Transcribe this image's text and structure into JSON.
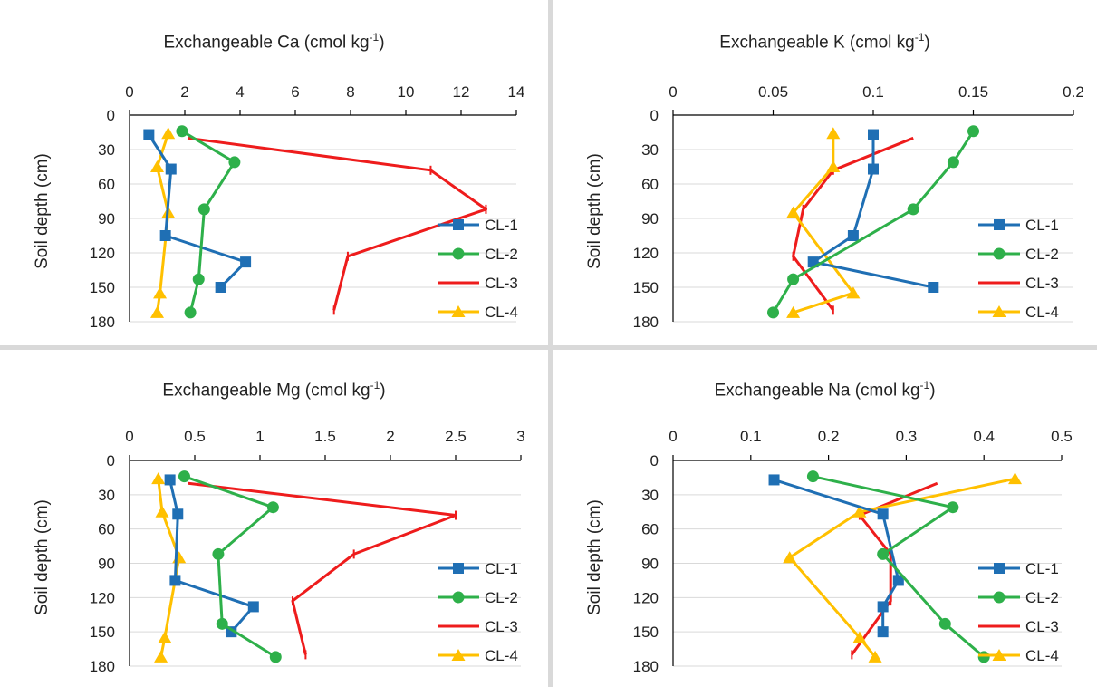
{
  "y_axis": {
    "label": "Soil depth (cm)",
    "ticks": [
      0,
      30,
      60,
      90,
      120,
      150,
      180
    ],
    "ylim": [
      0,
      180
    ],
    "reversed": true
  },
  "series_names": [
    "CL-1",
    "CL-2",
    "CL-3",
    "CL-4"
  ],
  "colors": {
    "CL-1": "#1f6fb4",
    "CL-2": "#2eb04a",
    "CL-3": "#ee1c1c",
    "CL-4": "#ffc000"
  },
  "markers": {
    "CL-1": "square",
    "CL-2": "circle",
    "CL-3": "dash",
    "CL-4": "triangle"
  },
  "chart_data": [
    {
      "type": "line",
      "title": "Exchangeable Ca (cmol kg-1)",
      "title_main": "Exchangeable Ca (cmol kg",
      "title_sup": "-1",
      "title_end": ")",
      "xlim": [
        0,
        14
      ],
      "xticks": [
        "0",
        "2",
        "4",
        "6",
        "8",
        "10",
        "12",
        "14"
      ],
      "ylabel": "Soil depth (cm)",
      "grid": true,
      "legend": "right",
      "series": [
        {
          "name": "CL-1",
          "x": [
            0.7,
            1.5,
            1.3,
            4.2,
            3.3
          ],
          "y": [
            17,
            47,
            105,
            128,
            150
          ]
        },
        {
          "name": "CL-2",
          "x": [
            1.9,
            3.8,
            2.7,
            2.5,
            2.2
          ],
          "y": [
            14,
            41,
            82,
            143,
            172
          ]
        },
        {
          "name": "CL-3",
          "x": [
            2.1,
            10.9,
            12.9,
            7.9,
            7.4
          ],
          "y": [
            20,
            48,
            82,
            123,
            170
          ]
        },
        {
          "name": "CL-4",
          "x": [
            1.4,
            1.0,
            1.4,
            1.1,
            1.0
          ],
          "y": [
            16,
            45,
            85,
            155,
            172
          ]
        }
      ]
    },
    {
      "type": "line",
      "title": "Exchangeable K (cmol kg-1)",
      "title_main": "Exchangeable K (cmol kg",
      "title_sup": "-1",
      "title_end": ")",
      "xlim": [
        0,
        0.2
      ],
      "xticks": [
        "0",
        "0.05",
        "0.1",
        "0.15",
        "0.2"
      ],
      "ylabel": "Soil depth (cm)",
      "grid": true,
      "legend": "right",
      "series": [
        {
          "name": "CL-1",
          "x": [
            0.1,
            0.1,
            0.09,
            0.07,
            0.13
          ],
          "y": [
            17,
            47,
            105,
            128,
            150
          ]
        },
        {
          "name": "CL-2",
          "x": [
            0.15,
            0.14,
            0.12,
            0.06,
            0.05
          ],
          "y": [
            14,
            41,
            82,
            143,
            172
          ]
        },
        {
          "name": "CL-3",
          "x": [
            0.12,
            0.08,
            0.065,
            0.06,
            0.08
          ],
          "y": [
            20,
            48,
            82,
            123,
            170
          ]
        },
        {
          "name": "CL-4",
          "x": [
            0.08,
            0.08,
            0.06,
            0.09,
            0.06
          ],
          "y": [
            16,
            45,
            85,
            155,
            172
          ]
        }
      ]
    },
    {
      "type": "line",
      "title": "Exchangeable Mg (cmol kg-1)",
      "title_main": "Exchangeable Mg (cmol kg",
      "title_sup": "-1",
      "title_end": ")",
      "xlim": [
        0,
        3
      ],
      "xticks": [
        "0",
        "0.5",
        "1",
        "1.5",
        "2",
        "2.5",
        "3"
      ],
      "ylabel": "Soil depth (cm)",
      "grid": true,
      "legend": "right",
      "series": [
        {
          "name": "CL-1",
          "x": [
            0.31,
            0.37,
            0.35,
            0.95,
            0.78
          ],
          "y": [
            17,
            47,
            105,
            128,
            150
          ]
        },
        {
          "name": "CL-2",
          "x": [
            0.42,
            1.1,
            0.68,
            0.71,
            1.12
          ],
          "y": [
            14,
            41,
            82,
            143,
            172
          ]
        },
        {
          "name": "CL-3",
          "x": [
            0.45,
            2.5,
            1.72,
            1.25,
            1.35
          ],
          "y": [
            20,
            48,
            82,
            123,
            170
          ]
        },
        {
          "name": "CL-4",
          "x": [
            0.22,
            0.25,
            0.38,
            0.27,
            0.24
          ],
          "y": [
            16,
            45,
            85,
            155,
            172
          ]
        }
      ]
    },
    {
      "type": "line",
      "title": "Exchangeable Na (cmol kg-1)",
      "title_main": "Exchangeable Na (cmol kg",
      "title_sup": "-1",
      "title_end": ")",
      "xlim": [
        0,
        0.5
      ],
      "xticks": [
        "0",
        "0.1",
        "0.2",
        "0.3",
        "0.4",
        "0.5"
      ],
      "ylabel": "Soil depth (cm)",
      "grid": true,
      "legend": "right",
      "series": [
        {
          "name": "CL-1",
          "x": [
            0.13,
            0.27,
            0.29,
            0.27,
            0.27
          ],
          "y": [
            17,
            47,
            105,
            128,
            150
          ]
        },
        {
          "name": "CL-2",
          "x": [
            0.18,
            0.36,
            0.27,
            0.35,
            0.4
          ],
          "y": [
            14,
            41,
            82,
            143,
            172
          ]
        },
        {
          "name": "CL-3",
          "x": [
            0.34,
            0.24,
            0.28,
            0.28,
            0.23
          ],
          "y": [
            20,
            48,
            82,
            123,
            170
          ]
        },
        {
          "name": "CL-4",
          "x": [
            0.44,
            0.24,
            0.15,
            0.24,
            0.26
          ],
          "y": [
            16,
            45,
            85,
            155,
            172
          ]
        }
      ]
    }
  ]
}
